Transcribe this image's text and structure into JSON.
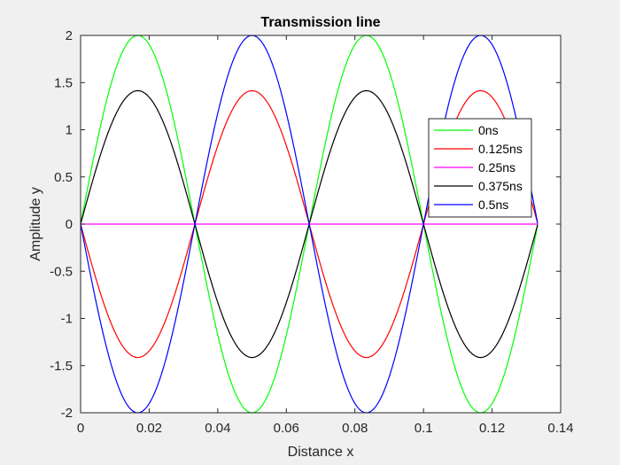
{
  "chart_data": {
    "type": "line",
    "title": "Transmission line",
    "xlabel": "Distance x",
    "ylabel": "Amplitude y",
    "xlim": [
      0,
      0.14
    ],
    "ylim": [
      -2,
      2
    ],
    "xticks": [
      0,
      0.02,
      0.04,
      0.06,
      0.08,
      0.1,
      0.12,
      0.14
    ],
    "xtick_labels": [
      "0",
      "0.02",
      "0.04",
      "0.06",
      "0.08",
      "0.1",
      "0.12",
      "0.14"
    ],
    "yticks": [
      -2,
      -1.5,
      -1,
      -0.5,
      0,
      0.5,
      1,
      1.5,
      2
    ],
    "ytick_labels": [
      "-2",
      "-1.5",
      "-1",
      "-0.5",
      "0",
      "0.5",
      "1",
      "1.5",
      "2"
    ],
    "grid": false,
    "legend_position": "right-upper-inside",
    "x_range": [
      0,
      0.1333
    ],
    "x_samples": 400,
    "wavelength": 0.06667,
    "series": [
      {
        "name": "0ns",
        "color": "#00ff00",
        "amplitude": 2,
        "sign": 1
      },
      {
        "name": "0.125ns",
        "color": "#ff0000",
        "amplitude": 1.414,
        "sign": -1
      },
      {
        "name": "0.25ns",
        "color": "#ff00ff",
        "amplitude": 0,
        "sign": 1
      },
      {
        "name": "0.375ns",
        "color": "#000000",
        "amplitude": 1.414,
        "sign": 1
      },
      {
        "name": "0.5ns",
        "color": "#0000ff",
        "amplitude": 2,
        "sign": -1
      }
    ]
  }
}
